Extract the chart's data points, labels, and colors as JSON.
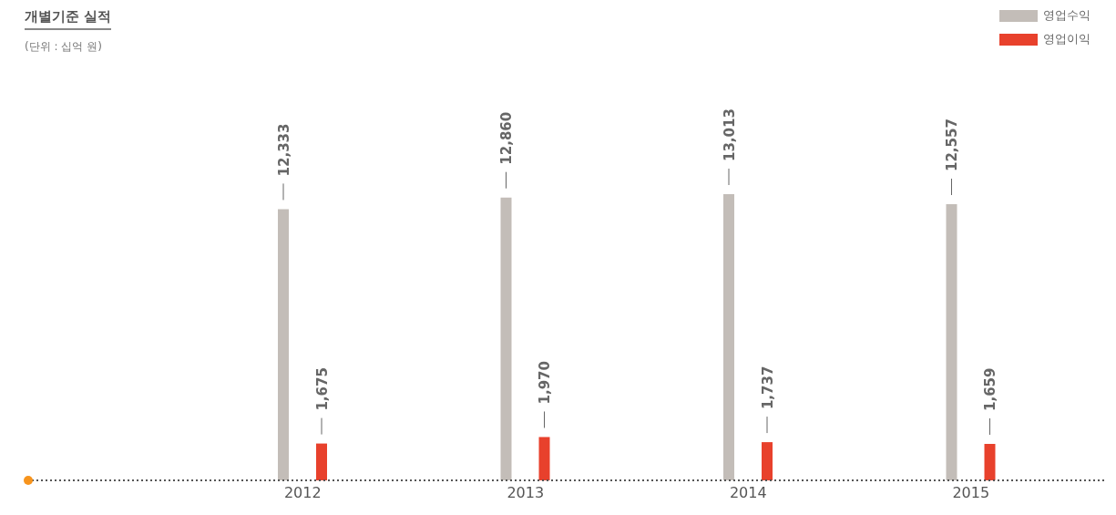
{
  "chart_data": {
    "type": "bar",
    "title": "개별기준 실적",
    "subtitle": "(단위 : 십억 원)",
    "categories": [
      "2012",
      "2013",
      "2014",
      "2015"
    ],
    "series": [
      {
        "name": "영업수익",
        "color": "#c3bdb8",
        "values": [
          12333,
          12860,
          13013,
          12557
        ],
        "value_labels": [
          "12,333",
          "12,860",
          "13,013",
          "12,557"
        ]
      },
      {
        "name": "영업이익",
        "color": "#e8412c",
        "values": [
          1675,
          1970,
          1737,
          1659
        ],
        "value_labels": [
          "1,675",
          "1,970",
          "1,737",
          "1,659"
        ]
      }
    ],
    "legend": "top right"
  }
}
